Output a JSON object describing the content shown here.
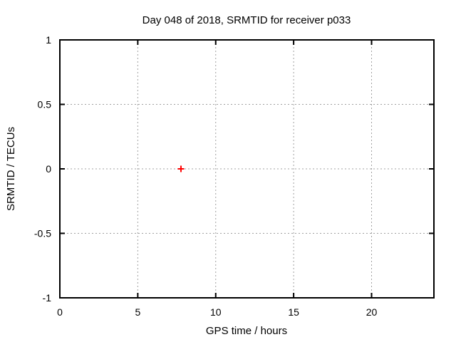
{
  "window": {
    "background": "#ffffff"
  },
  "chart_data": {
    "type": "scatter",
    "title": "Day 048 of 2018, SRMTID for receiver p033",
    "xlabel": "GPS time / hours",
    "ylabel": "SRMTID / TECUs",
    "xlim": [
      0,
      24
    ],
    "ylim": [
      -1,
      1
    ],
    "xticks": [
      0,
      5,
      10,
      15,
      20
    ],
    "xtick_labels": [
      "0",
      "5",
      "10",
      "15",
      "20"
    ],
    "yticks": [
      1,
      0.5,
      0,
      -0.5,
      -1
    ],
    "ytick_labels": [
      "1",
      "0.5",
      "0",
      "-0.5",
      "-1"
    ],
    "grid": true,
    "grid_style": "dotted",
    "legend": false,
    "series": [
      {
        "marker": "plus",
        "color": "#ff0000",
        "points": [
          [
            7.77,
            0.0
          ]
        ]
      }
    ],
    "colors": {
      "axis": "#000000",
      "grid": "#a0a0a0",
      "text": "#000000",
      "marker": "#ff0000",
      "background": "#ffffff"
    }
  }
}
